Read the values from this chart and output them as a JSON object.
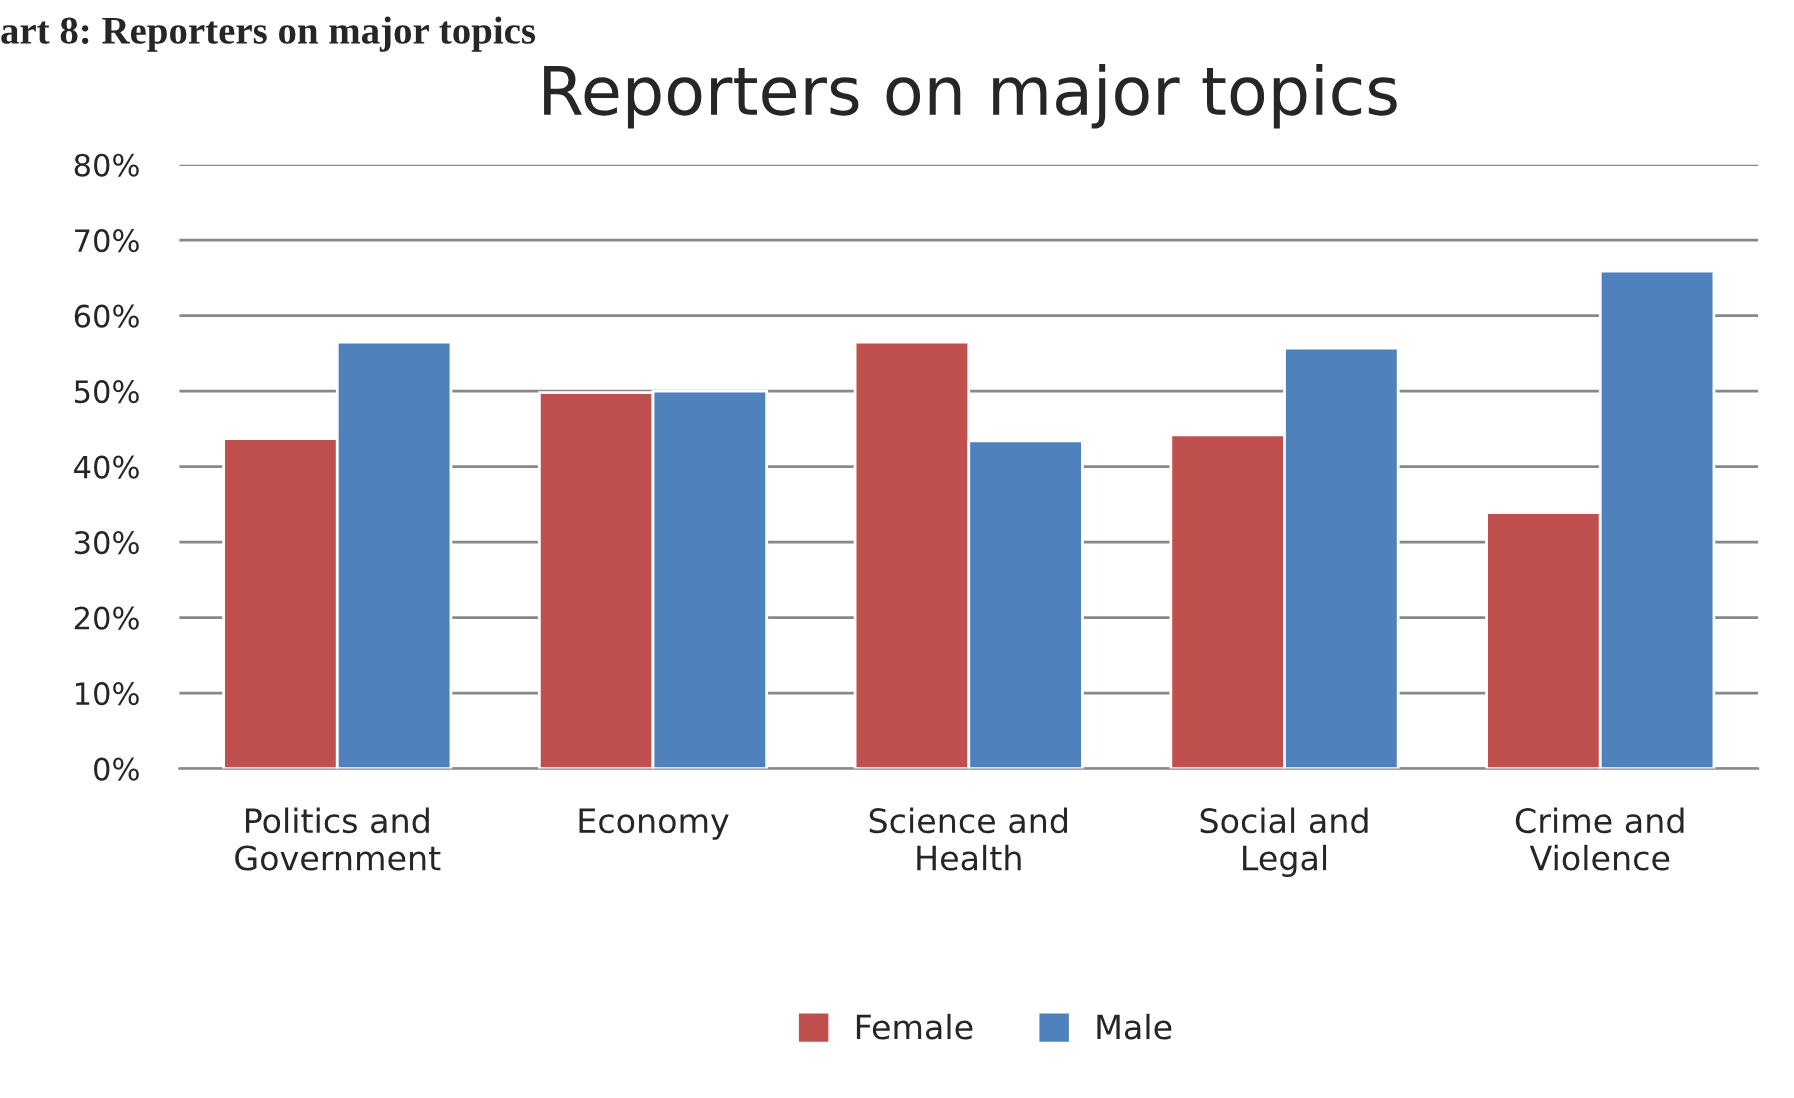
{
  "chart_data": {
    "type": "bar",
    "title": "Reporters on major topics",
    "annotations": [
      "art 8: Reporters on major topics"
    ],
    "categories": [
      "Politics and\nGovernment",
      "Economy",
      "Science and\nHealth",
      "Social and\nLegal",
      "Crime and\nViolence"
    ],
    "series": [
      {
        "name": "Female",
        "color": "#c0504d",
        "values": [
          43.7,
          49.8,
          56.5,
          44.2,
          33.9
        ]
      },
      {
        "name": "Male",
        "color": "#4f81bd",
        "values": [
          56.5,
          50.0,
          43.4,
          55.7,
          65.9
        ]
      }
    ],
    "ylim": [
      0,
      80
    ],
    "yticks": [
      {
        "value": 0,
        "label": "0%"
      },
      {
        "value": 10,
        "label": "10%"
      },
      {
        "value": 20,
        "label": "20%"
      },
      {
        "value": 30,
        "label": "30%"
      },
      {
        "value": 40,
        "label": "40%"
      },
      {
        "value": 50,
        "label": "50%"
      },
      {
        "value": 60,
        "label": "60%"
      },
      {
        "value": 70,
        "label": "70%"
      },
      {
        "value": 80,
        "label": "80%"
      }
    ],
    "grid": "y",
    "legend": "bottom"
  }
}
